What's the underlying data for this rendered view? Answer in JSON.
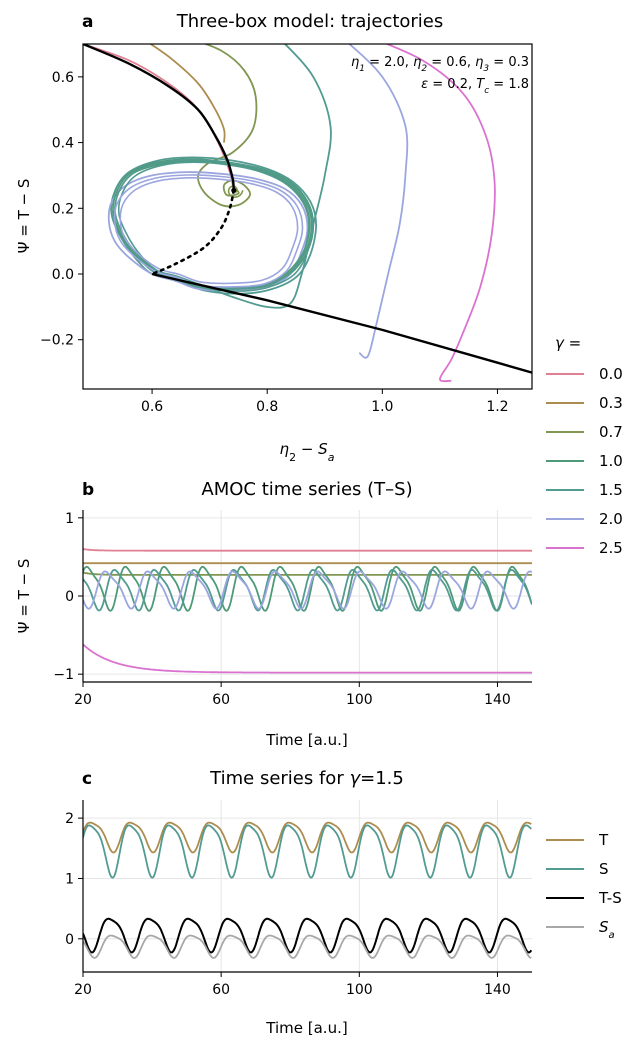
{
  "panels": {
    "a": {
      "label": "a",
      "title": "Three-box model: trajectories"
    },
    "b": {
      "label": "b",
      "title": "AMOC time series (T–S)"
    },
    "c": {
      "label": "c",
      "title_prefix": "Time series for ",
      "title_greek": "γ",
      "title_suffix": "=1.5"
    }
  },
  "legend_gamma": {
    "title_greek": "γ",
    "title_suffix": " =",
    "entries": [
      {
        "label": "0.0",
        "color": "#e17f93"
      },
      {
        "label": "0.3",
        "color": "#ac8d4f"
      },
      {
        "label": "0.7",
        "color": "#809651"
      },
      {
        "label": "1.0",
        "color": "#4e9a78"
      },
      {
        "label": "1.5",
        "color": "#529b92"
      },
      {
        "label": "2.0",
        "color": "#9ba6df"
      },
      {
        "label": "2.5",
        "color": "#da73cf"
      }
    ]
  },
  "legend_c": {
    "entries": [
      {
        "label": "T",
        "color": "#ac8d4f"
      },
      {
        "label": "S",
        "color": "#529b92"
      },
      {
        "label": "T-S",
        "color": "#000000"
      },
      {
        "label": "S",
        "sub": "a",
        "color": "#a8a8a8"
      }
    ]
  },
  "chart_data": [
    {
      "id": "a",
      "type": "line",
      "title": "Three-box model: trajectories",
      "xlabel": {
        "main": "η",
        "sub": "2",
        "rest": " − S",
        "sub2": "a"
      },
      "ylabel": "Ψ = T − S",
      "xlim": [
        0.48,
        1.26
      ],
      "ylim": [
        -0.35,
        0.7
      ],
      "xticks": [
        0.6,
        0.8,
        1.0,
        1.2
      ],
      "xtick_labels": [
        "0.6",
        "0.8",
        "1.0",
        "1.2"
      ],
      "yticks": [
        -0.2,
        0.0,
        0.2,
        0.4,
        0.6
      ],
      "ytick_labels": [
        "−0.2",
        "0.0",
        "0.2",
        "0.4",
        "0.6"
      ],
      "grid": false,
      "annotation": {
        "line1": [
          {
            "g": "η",
            "s": "1",
            "v": " = 2.0, "
          },
          {
            "g": "η",
            "s": "2",
            "v": " = 0.6, "
          },
          {
            "g": "η",
            "s": "3",
            "v": " = 0.3"
          }
        ],
        "line2": [
          {
            "g": "ε",
            "s": "",
            "v": " = 0.2, "
          },
          {
            "g": "T",
            "s": "c",
            "v": " = 1.8"
          }
        ]
      },
      "fixed_point": {
        "x": 0.742,
        "y": 0.255
      },
      "stable_branch": [
        [
          0.48,
          0.7
        ],
        [
          0.56,
          0.64
        ],
        [
          0.63,
          0.57
        ],
        [
          0.68,
          0.5
        ],
        [
          0.71,
          0.42
        ],
        [
          0.73,
          0.35
        ],
        [
          0.74,
          0.29
        ],
        [
          0.742,
          0.255
        ]
      ],
      "unstable_branch": [
        [
          0.742,
          0.255
        ],
        [
          0.735,
          0.2
        ],
        [
          0.72,
          0.14
        ],
        [
          0.69,
          0.08
        ],
        [
          0.64,
          0.03
        ],
        [
          0.6,
          0.0
        ]
      ],
      "lower_branch": [
        [
          0.6,
          0.0
        ],
        [
          0.8,
          -0.08
        ],
        [
          1.0,
          -0.17
        ],
        [
          1.2,
          -0.27
        ],
        [
          1.26,
          -0.3
        ]
      ],
      "series": [
        {
          "name": "0.0",
          "color": "#e17f93",
          "points": [
            [
              0.48,
              0.7
            ],
            [
              0.56,
              0.65
            ],
            [
              0.62,
              0.59
            ],
            [
              0.67,
              0.52
            ],
            [
              0.7,
              0.45
            ],
            [
              0.72,
              0.38
            ],
            [
              0.735,
              0.31
            ],
            [
              0.742,
              0.255
            ]
          ]
        },
        {
          "name": "0.3",
          "color": "#ac8d4f",
          "points": [
            [
              0.58,
              0.72
            ],
            [
              0.63,
              0.66
            ],
            [
              0.68,
              0.58
            ],
            [
              0.71,
              0.5
            ],
            [
              0.725,
              0.44
            ],
            [
              0.725,
              0.4
            ]
          ]
        },
        {
          "name": "0.7",
          "color": "#809651",
          "points": [
            [
              0.66,
              0.72
            ],
            [
              0.72,
              0.68
            ],
            [
              0.76,
              0.62
            ],
            [
              0.78,
              0.54
            ],
            [
              0.775,
              0.44
            ],
            [
              0.74,
              0.37
            ],
            [
              0.7,
              0.34
            ],
            [
              0.68,
              0.3
            ],
            [
              0.69,
              0.25
            ],
            [
              0.72,
              0.21
            ],
            [
              0.75,
              0.21
            ],
            [
              0.77,
              0.24
            ],
            [
              0.76,
              0.27
            ],
            [
              0.74,
              0.285
            ],
            [
              0.725,
              0.27
            ],
            [
              0.73,
              0.24
            ],
            [
              0.75,
              0.245
            ],
            [
              0.745,
              0.26
            ]
          ]
        },
        {
          "name": "1.0",
          "color": "#4e9a78",
          "closed": true,
          "points": [
            [
              0.61,
              0.0
            ],
            [
              0.64,
              -0.02
            ],
            [
              0.69,
              -0.045
            ],
            [
              0.74,
              -0.05
            ],
            [
              0.8,
              -0.04
            ],
            [
              0.84,
              0.0
            ],
            [
              0.87,
              0.07
            ],
            [
              0.88,
              0.15
            ],
            [
              0.87,
              0.22
            ],
            [
              0.84,
              0.28
            ],
            [
              0.79,
              0.32
            ],
            [
              0.73,
              0.34
            ],
            [
              0.67,
              0.35
            ],
            [
              0.61,
              0.34
            ],
            [
              0.56,
              0.31
            ],
            [
              0.535,
              0.25
            ],
            [
              0.53,
              0.18
            ],
            [
              0.55,
              0.1
            ],
            [
              0.58,
              0.04
            ]
          ]
        },
        {
          "name": "1.5",
          "color": "#529b92",
          "closed": true,
          "points": [
            [
              0.6,
              0.0
            ],
            [
              0.64,
              -0.02
            ],
            [
              0.69,
              -0.05
            ],
            [
              0.745,
              -0.06
            ],
            [
              0.8,
              -0.05
            ],
            [
              0.85,
              -0.01
            ],
            [
              0.875,
              0.06
            ],
            [
              0.885,
              0.15
            ],
            [
              0.875,
              0.22
            ],
            [
              0.845,
              0.28
            ],
            [
              0.8,
              0.32
            ],
            [
              0.74,
              0.345
            ],
            [
              0.67,
              0.355
            ],
            [
              0.61,
              0.345
            ],
            [
              0.56,
              0.31
            ],
            [
              0.535,
              0.25
            ],
            [
              0.53,
              0.18
            ],
            [
              0.55,
              0.1
            ],
            [
              0.575,
              0.04
            ]
          ]
        },
        {
          "name": "1.5-transient",
          "color": "#529b92",
          "points": [
            [
              0.82,
              0.72
            ],
            [
              0.88,
              0.6
            ],
            [
              0.91,
              0.45
            ],
            [
              0.9,
              0.3
            ],
            [
              0.88,
              0.15
            ],
            [
              0.86,
              0.0
            ],
            [
              0.84,
              -0.09
            ],
            [
              0.8,
              -0.1
            ],
            [
              0.74,
              -0.07
            ],
            [
              0.68,
              -0.03
            ]
          ]
        },
        {
          "name": "2.0",
          "color": "#9ba6df",
          "closed": true,
          "points": [
            [
              0.6,
              0.0
            ],
            [
              0.64,
              -0.02
            ],
            [
              0.68,
              -0.045
            ],
            [
              0.74,
              -0.05
            ],
            [
              0.8,
              -0.04
            ],
            [
              0.84,
              0.0
            ],
            [
              0.86,
              0.07
            ],
            [
              0.87,
              0.14
            ],
            [
              0.86,
              0.21
            ],
            [
              0.83,
              0.26
            ],
            [
              0.78,
              0.29
            ],
            [
              0.72,
              0.305
            ],
            [
              0.66,
              0.31
            ],
            [
              0.6,
              0.3
            ],
            [
              0.555,
              0.27
            ],
            [
              0.53,
              0.22
            ],
            [
              0.525,
              0.16
            ],
            [
              0.535,
              0.1
            ],
            [
              0.56,
              0.05
            ]
          ]
        },
        {
          "name": "2.0-transient",
          "color": "#9ba6df",
          "points": [
            [
              0.93,
              0.72
            ],
            [
              1.0,
              0.6
            ],
            [
              1.04,
              0.45
            ],
            [
              1.04,
              0.3
            ],
            [
              1.03,
              0.15
            ],
            [
              1.01,
              0.0
            ],
            [
              0.99,
              -0.15
            ],
            [
              0.975,
              -0.25
            ],
            [
              0.96,
              -0.24
            ]
          ]
        },
        {
          "name": "2.5",
          "color": "#da73cf",
          "points": [
            [
              0.98,
              0.72
            ],
            [
              1.07,
              0.65
            ],
            [
              1.14,
              0.55
            ],
            [
              1.18,
              0.42
            ],
            [
              1.195,
              0.28
            ],
            [
              1.19,
              0.12
            ],
            [
              1.17,
              -0.04
            ],
            [
              1.14,
              -0.18
            ],
            [
              1.12,
              -0.26
            ],
            [
              1.1,
              -0.32
            ],
            [
              1.12,
              -0.325
            ]
          ]
        }
      ]
    },
    {
      "id": "b",
      "type": "line",
      "title": "AMOC time series (T–S)",
      "xlabel": "Time [a.u.]",
      "ylabel": "Ψ = T − S",
      "xlim": [
        20,
        150
      ],
      "ylim": [
        -1.1,
        1.1
      ],
      "xticks": [
        20,
        60,
        100,
        140
      ],
      "xtick_labels": [
        "20",
        "60",
        "100",
        "140"
      ],
      "yticks": [
        -1,
        0,
        1
      ],
      "ytick_labels": [
        "−1",
        "0",
        "1"
      ],
      "grid": true,
      "series": [
        {
          "name": "0.0",
          "color": "#e17f93",
          "kind": "const",
          "start": 0.6,
          "value": 0.58
        },
        {
          "name": "0.3",
          "color": "#ac8d4f",
          "kind": "const",
          "start": 0.42,
          "value": 0.42
        },
        {
          "name": "0.7",
          "color": "#809651",
          "kind": "const",
          "start": 0.3,
          "value": 0.27
        },
        {
          "name": "1.0",
          "color": "#4e9a78",
          "kind": "osc",
          "mean": 0.12,
          "amp": 0.26,
          "period": 11.2,
          "phase": 0.5
        },
        {
          "name": "1.5",
          "color": "#529b92",
          "kind": "osc",
          "mean": 0.1,
          "amp": 0.24,
          "period": 11.5,
          "phase": 2.4
        },
        {
          "name": "2.0",
          "color": "#9ba6df",
          "kind": "osc",
          "mean": 0.1,
          "amp": 0.22,
          "period": 12.3,
          "phase": 4.1
        },
        {
          "name": "2.5",
          "color": "#da73cf",
          "kind": "decay",
          "start": -0.62,
          "value": -0.98
        }
      ]
    },
    {
      "id": "c",
      "type": "line",
      "title": "Time series for γ=1.5",
      "xlabel": "Time [a.u.]",
      "ylabel": "",
      "xlim": [
        20,
        150
      ],
      "ylim": [
        -0.55,
        2.3
      ],
      "xticks": [
        20,
        60,
        100,
        140
      ],
      "xtick_labels": [
        "20",
        "60",
        "100",
        "140"
      ],
      "yticks": [
        0,
        1,
        2
      ],
      "ytick_labels": [
        "0",
        "1",
        "2"
      ],
      "grid": true,
      "period": 11.5,
      "series": [
        {
          "name": "T",
          "color": "#ac8d4f",
          "mean": 1.72,
          "amp": 0.24,
          "phase": 0.0
        },
        {
          "name": "S",
          "color": "#529b92",
          "mean": 1.52,
          "amp": 0.42,
          "phase": 0.15
        },
        {
          "name": "T-S",
          "color": "#000000",
          "mean": 0.1,
          "amp": 0.27,
          "phase": 3.4
        },
        {
          "name": "S_a",
          "color": "#a8a8a8",
          "mean": -0.1,
          "amp": 0.18,
          "phase": 3.0
        }
      ]
    }
  ]
}
